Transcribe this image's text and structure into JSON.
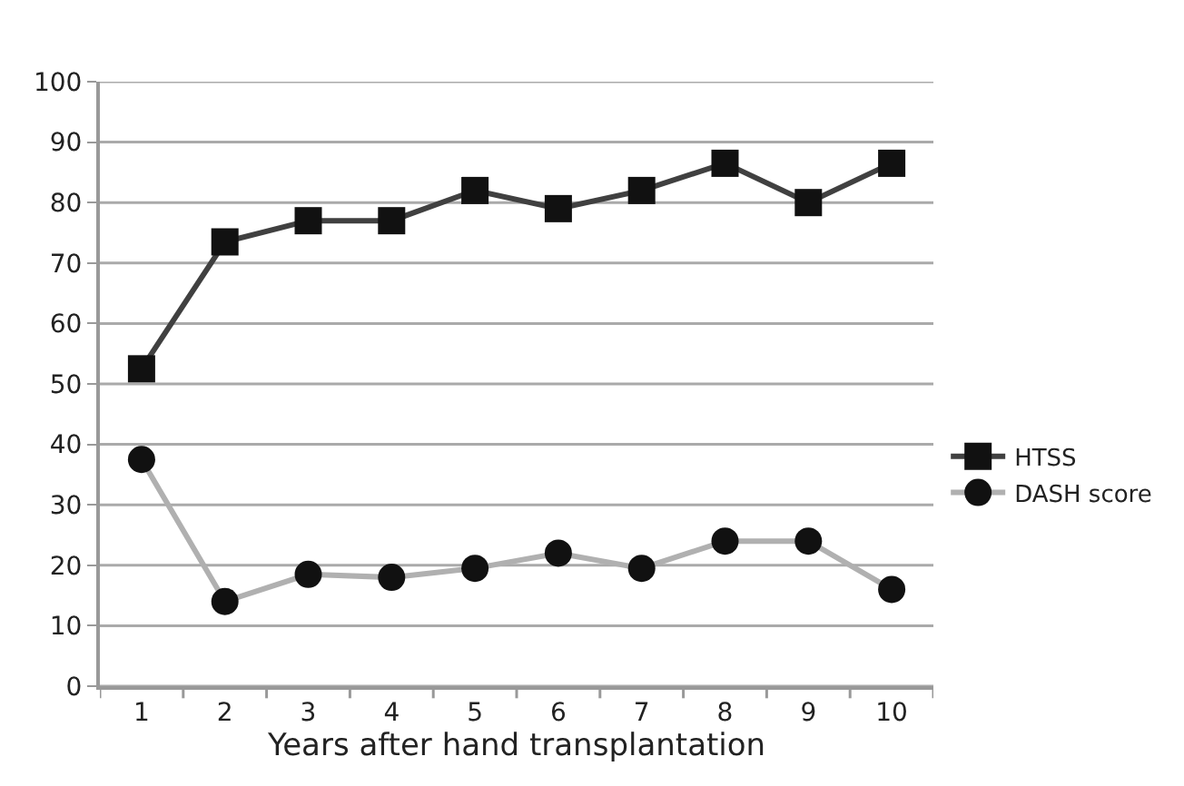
{
  "chart_data": {
    "type": "line",
    "xlabel": "Years after hand transplantation",
    "categories": [
      "1",
      "2",
      "3",
      "4",
      "5",
      "6",
      "7",
      "8",
      "9",
      "10"
    ],
    "series": [
      {
        "name": "HTSS",
        "color": "#404040",
        "marker": "square",
        "values": [
          52.5,
          73.5,
          77,
          77,
          82,
          79,
          82,
          86.5,
          80,
          86.5
        ]
      },
      {
        "name": "DASH score",
        "color": "#b0b0b0",
        "marker": "circle",
        "values": [
          37.5,
          14,
          18.5,
          18,
          19.5,
          22,
          19.5,
          24,
          24,
          16
        ]
      }
    ],
    "ylim": [
      0,
      100
    ],
    "yticks": [
      0,
      10,
      20,
      30,
      40,
      50,
      60,
      70,
      80,
      90,
      100
    ],
    "grid": "y",
    "legend": "right",
    "line_style": "solid"
  }
}
